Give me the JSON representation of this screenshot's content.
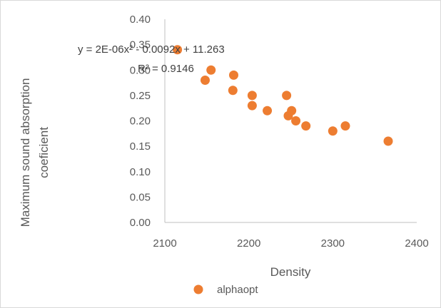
{
  "chart_data": {
    "type": "scatter",
    "xlabel": "Density",
    "ylabel": "Maximum sound absorption coeficient",
    "ylabel_lines": [
      "Maximum sound absorption",
      "coeficient"
    ],
    "xlim": [
      2100,
      2400
    ],
    "ylim": [
      0.0,
      0.4
    ],
    "x_ticks": [
      "2100",
      "2200",
      "2300",
      "2400"
    ],
    "y_ticks": [
      "0.00",
      "0.05",
      "0.10",
      "0.15",
      "0.20",
      "0.25",
      "0.30",
      "0.35",
      "0.40"
    ],
    "grid": false,
    "legend_position": "bottom",
    "series": [
      {
        "name": "alphaopt",
        "color": "#ED7D31",
        "points": [
          {
            "x": 2115,
            "y": 0.34
          },
          {
            "x": 2148,
            "y": 0.28
          },
          {
            "x": 2155,
            "y": 0.3
          },
          {
            "x": 2182,
            "y": 0.29
          },
          {
            "x": 2181,
            "y": 0.26
          },
          {
            "x": 2204,
            "y": 0.25
          },
          {
            "x": 2204,
            "y": 0.23
          },
          {
            "x": 2222,
            "y": 0.22
          },
          {
            "x": 2245,
            "y": 0.25
          },
          {
            "x": 2247,
            "y": 0.21
          },
          {
            "x": 2251,
            "y": 0.22
          },
          {
            "x": 2256,
            "y": 0.2
          },
          {
            "x": 2268,
            "y": 0.19
          },
          {
            "x": 2300,
            "y": 0.18
          },
          {
            "x": 2315,
            "y": 0.19
          },
          {
            "x": 2366,
            "y": 0.16
          }
        ]
      }
    ],
    "trendline": {
      "type": "polynomial",
      "coefficients": [
        2e-06,
        -0.0092,
        11.263
      ],
      "x_range": [
        2115,
        2366
      ],
      "color": "#ED7D31",
      "equation_label": "y = 2E-06x² - 0.0092x + 11.263",
      "r2_label": "R² = 0.9146"
    }
  }
}
